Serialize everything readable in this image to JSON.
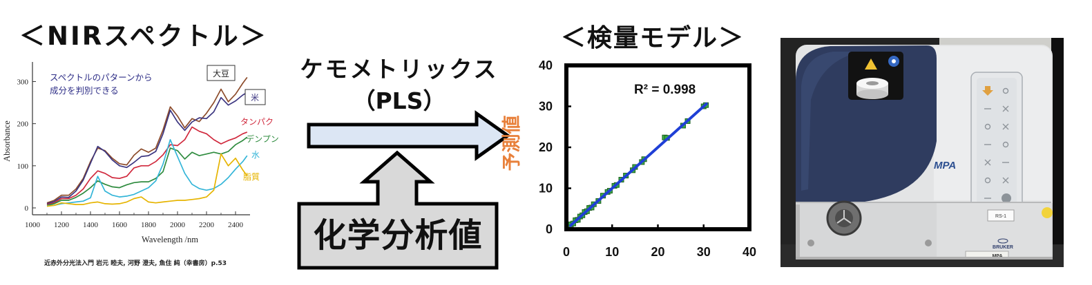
{
  "process": {
    "chemometrics_label": "ケモメトリックス",
    "method_label": "（PLS）",
    "reference_label": "化学分析値"
  },
  "instrument_photo": {
    "model_badge": "MPA",
    "brand_logo": "BRUKER",
    "sample_tag": "RS-1",
    "plate_text": "MPA"
  },
  "colors": {
    "arrow_fill": "#dce6f4",
    "reference_box_fill": "#d9d9d9",
    "outline": "#000000",
    "ylabel_orange": "#e8803a",
    "instrument_navy": "#2f3c5f",
    "instrument_body": "#e3e4e5"
  },
  "chart_data": [
    {
      "type": "line",
      "title": "＜NIRスペクトル＞",
      "xlabel": "Wavelength /nm",
      "ylabel": "Absorbance",
      "xlim": [
        1000,
        2500
      ],
      "ylim": [
        0,
        340
      ],
      "xticks": [
        1000,
        1200,
        1400,
        1600,
        1800,
        2000,
        2200,
        2400
      ],
      "yticks": [
        0,
        100,
        200,
        300
      ],
      "grid": false,
      "legend": "inline labels at right end of curves",
      "annotations": [
        "スペクトルのパターンから",
        "成分を判別できる"
      ],
      "annotation_color": "#2d2d86",
      "source": "近赤外分光法入門 岩元 睦夫, 河野 澄夫, 魚住 純（幸書房）p.53",
      "x": [
        1100,
        1150,
        1200,
        1250,
        1300,
        1350,
        1400,
        1450,
        1500,
        1550,
        1600,
        1650,
        1700,
        1750,
        1800,
        1850,
        1900,
        1950,
        2000,
        2050,
        2100,
        2150,
        2200,
        2250,
        2300,
        2350,
        2400,
        2450,
        2480
      ],
      "series": [
        {
          "name": "大豆",
          "color": "#8c4b2a",
          "values": [
            12,
            18,
            30,
            30,
            45,
            70,
            110,
            142,
            136,
            118,
            105,
            102,
            125,
            140,
            132,
            142,
            185,
            240,
            218,
            190,
            212,
            205,
            225,
            250,
            282,
            252,
            270,
            296,
            310
          ]
        },
        {
          "name": "米",
          "color": "#3b3580",
          "values": [
            10,
            15,
            26,
            25,
            40,
            66,
            106,
            146,
            134,
            114,
            100,
            96,
            108,
            122,
            124,
            134,
            176,
            232,
            204,
            184,
            204,
            214,
            212,
            228,
            262,
            244,
            254,
            268,
            274
          ]
        },
        {
          "name": "タンパク",
          "color": "#d0283c",
          "values": [
            8,
            12,
            22,
            22,
            30,
            45,
            70,
            88,
            82,
            72,
            70,
            75,
            95,
            100,
            100,
            110,
            126,
            150,
            148,
            162,
            192,
            182,
            176,
            162,
            152,
            160,
            166,
            176,
            180
          ]
        },
        {
          "name": "デンプン",
          "color": "#2e8b3e",
          "values": [
            6,
            10,
            18,
            18,
            25,
            35,
            48,
            64,
            56,
            50,
            48,
            55,
            60,
            62,
            62,
            70,
            86,
            142,
            136,
            116,
            132,
            124,
            128,
            132,
            128,
            134,
            150,
            160,
            168
          ]
        },
        {
          "name": "水",
          "color": "#33b5d8",
          "values": [
            5,
            6,
            10,
            12,
            14,
            16,
            24,
            75,
            40,
            30,
            26,
            28,
            32,
            40,
            48,
            64,
            104,
            162,
            122,
            82,
            56,
            46,
            42,
            46,
            56,
            72,
            92,
            110,
            124
          ]
        },
        {
          "name": "脂質",
          "color": "#e6b400",
          "values": [
            4,
            6,
            12,
            10,
            8,
            8,
            12,
            14,
            10,
            9,
            10,
            14,
            22,
            26,
            14,
            12,
            14,
            16,
            18,
            18,
            20,
            22,
            26,
            42,
            128,
            100,
            118,
            90,
            76
          ]
        }
      ]
    },
    {
      "type": "scatter",
      "title": "＜検量モデル＞",
      "ylabel": "予測値",
      "xlim": [
        0,
        40
      ],
      "ylim": [
        0,
        40
      ],
      "xticks": [
        0,
        10,
        20,
        30,
        40
      ],
      "yticks": [
        0,
        10,
        20,
        30,
        40
      ],
      "grid": false,
      "annotations": [
        "R² = 0.998"
      ],
      "marker_color": "#3cb043",
      "fit_line_color": "#1f3fd6",
      "fit_line": {
        "x": [
          0.9,
          30.6
        ],
        "y": [
          0.9,
          30.6
        ]
      },
      "points": {
        "x": [
          1.0,
          1.5,
          2.0,
          2.5,
          3.0,
          3.5,
          4.0,
          4.5,
          5.0,
          5.5,
          6.0,
          7.0,
          8.0,
          9.0,
          9.5,
          10.5,
          11.0,
          12.0,
          13.0,
          14.5,
          15.0,
          16.5,
          17.0,
          21.5,
          22.0,
          25.5,
          26.5,
          30.0,
          30.5
        ],
        "y": [
          1.2,
          1.4,
          2.2,
          2.3,
          3.1,
          3.4,
          4.2,
          4.4,
          5.2,
          5.3,
          6.1,
          6.9,
          8.2,
          9.1,
          9.4,
          10.6,
          10.8,
          12.1,
          13.1,
          14.4,
          15.2,
          16.4,
          17.1,
          22.4,
          22.3,
          25.3,
          26.4,
          30.0,
          30.3
        ]
      }
    }
  ]
}
